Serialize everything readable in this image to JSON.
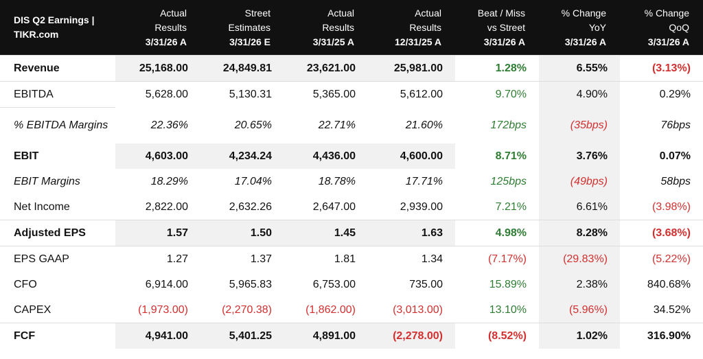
{
  "header": {
    "title": "DIS Q2 Earnings | TIKR.com",
    "columns": [
      {
        "l1": "Actual",
        "l2": "Results",
        "l3": "3/31/26 A"
      },
      {
        "l1": "Street",
        "l2": "Estimates",
        "l3": "3/31/26 E"
      },
      {
        "l1": "Actual",
        "l2": "Results",
        "l3": "3/31/25 A"
      },
      {
        "l1": "Actual",
        "l2": "Results",
        "l3": "12/31/25 A"
      },
      {
        "l1": "Beat / Miss",
        "l2": "vs Street",
        "l3": "3/31/26 A"
      },
      {
        "l1": "% Change",
        "l2": "YoY",
        "l3": "3/31/26 A"
      },
      {
        "l1": "% Change",
        "l2": "QoQ",
        "l3": "3/31/26 A"
      }
    ]
  },
  "rows": [
    {
      "label": "Revenue",
      "v": [
        "25,168.00",
        "24,849.81",
        "23,621.00",
        "25,981.00",
        "1.28%",
        "6.55%",
        "(3.13%)"
      ]
    },
    {
      "label": "EBITDA",
      "v": [
        "5,628.00",
        "5,130.31",
        "5,365.00",
        "5,612.00",
        "9.70%",
        "4.90%",
        "0.29%"
      ]
    },
    {
      "label": "% EBITDA Margins",
      "v": [
        "22.36%",
        "20.65%",
        "22.71%",
        "21.60%",
        "172bps",
        "(35bps)",
        "76bps"
      ]
    },
    {
      "label": "EBIT",
      "v": [
        "4,603.00",
        "4,234.24",
        "4,436.00",
        "4,600.00",
        "8.71%",
        "3.76%",
        "0.07%"
      ]
    },
    {
      "label": "EBIT Margins",
      "v": [
        "18.29%",
        "17.04%",
        "18.78%",
        "17.71%",
        "125bps",
        "(49bps)",
        "58bps"
      ]
    },
    {
      "label": "Net Income",
      "v": [
        "2,822.00",
        "2,632.26",
        "2,647.00",
        "2,939.00",
        "7.21%",
        "6.61%",
        "(3.98%)"
      ]
    },
    {
      "label": "Adjusted EPS",
      "v": [
        "1.57",
        "1.50",
        "1.45",
        "1.63",
        "4.98%",
        "8.28%",
        "(3.68%)"
      ]
    },
    {
      "label": "EPS GAAP",
      "v": [
        "1.27",
        "1.37",
        "1.81",
        "1.34",
        "(7.17%)",
        "(29.83%)",
        "(5.22%)"
      ]
    },
    {
      "label": "CFO",
      "v": [
        "6,914.00",
        "5,965.83",
        "6,753.00",
        "735.00",
        "15.89%",
        "2.38%",
        "840.68%"
      ]
    },
    {
      "label": "CAPEX",
      "v": [
        "(1,973.00)",
        "(2,270.38)",
        "(1,862.00)",
        "(3,013.00)",
        "13.10%",
        "(5.96%)",
        "34.52%"
      ]
    },
    {
      "label": "FCF",
      "v": [
        "4,941.00",
        "5,401.25",
        "4,891.00",
        "(2,278.00)",
        "(8.52%)",
        "1.02%",
        "316.90%"
      ]
    }
  ],
  "colors": {
    "header_bg": "#111111",
    "positive": "#2e7d32",
    "negative": "#d32f2f",
    "shade": "#f1f1f1"
  }
}
